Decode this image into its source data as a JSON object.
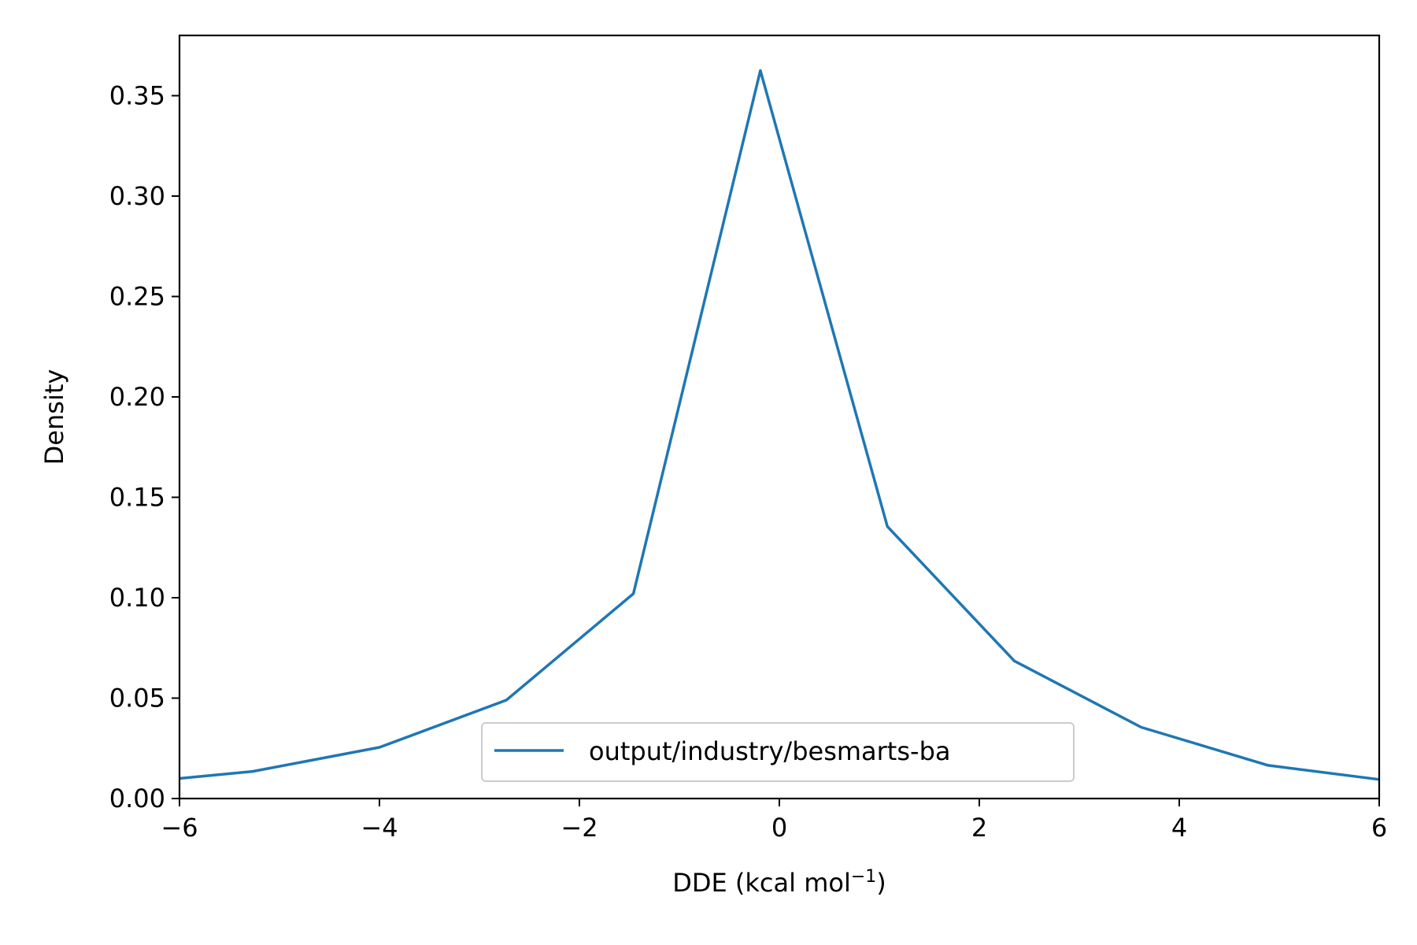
{
  "chart_data": {
    "type": "line",
    "title": "",
    "xlabel": "DDE (kcal mol",
    "xlabel_sup": "−1",
    "xlabel_end": ")",
    "ylabel": "Density",
    "xlim": [
      -6,
      6
    ],
    "ylim": [
      0,
      0.38
    ],
    "xticks": [
      -6,
      -4,
      -2,
      0,
      2,
      4,
      6
    ],
    "xtick_labels": [
      "−6",
      "−4",
      "−2",
      "0",
      "2",
      "4",
      "6"
    ],
    "yticks": [
      0.0,
      0.05,
      0.1,
      0.15,
      0.2,
      0.25,
      0.3,
      0.35
    ],
    "ytick_labels": [
      "0.00",
      "0.05",
      "0.10",
      "0.15",
      "0.20",
      "0.25",
      "0.30",
      "0.35"
    ],
    "grid": false,
    "legend_position": "bottom-center",
    "series": [
      {
        "name": "output/industry/besmarts-ba",
        "color": "#1f77b4",
        "x": [
          -6.0,
          -5.27,
          -4.0,
          -2.73,
          -1.46,
          -0.19,
          1.08,
          2.35,
          3.62,
          4.89,
          6.0
        ],
        "y": [
          0.01,
          0.0135,
          0.0255,
          0.049,
          0.102,
          0.3625,
          0.1355,
          0.0685,
          0.0355,
          0.0165,
          0.0095
        ]
      }
    ]
  }
}
